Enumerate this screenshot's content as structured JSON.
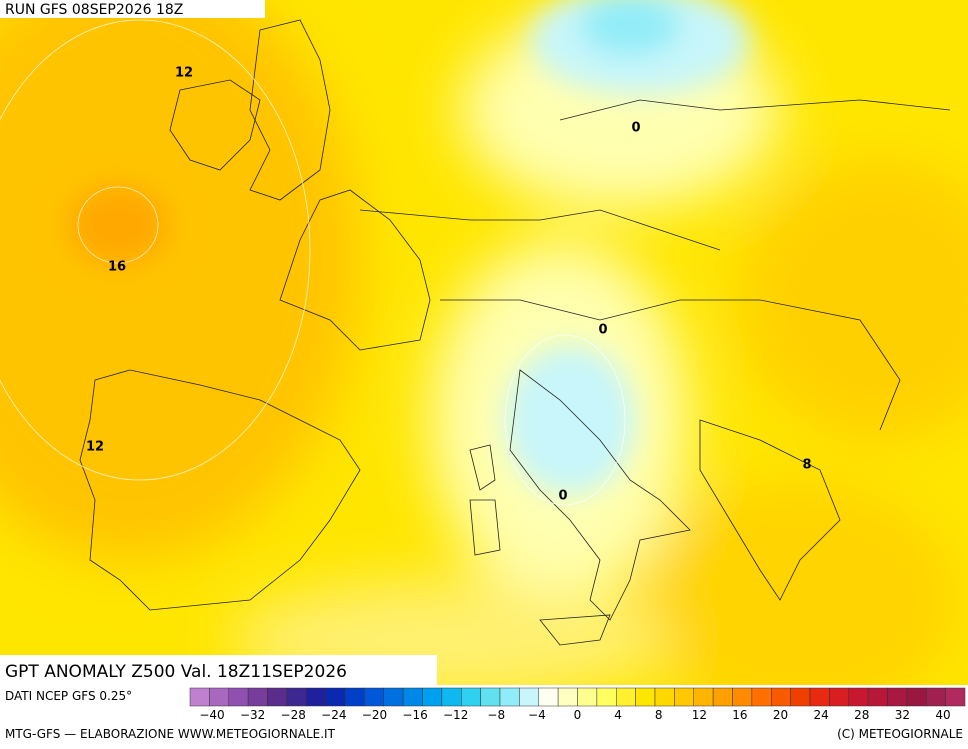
{
  "header": {
    "run": "RUN GFS 08SEP2026 18Z"
  },
  "title": "GPT ANOMALY Z500 Val. 18Z11SEP2026",
  "source": "DATI NCEP GFS 0.25°",
  "footer": {
    "left": "MTG-GFS — ELABORAZIONE WWW.METEOGIORNALE.IT",
    "right": "(C) METEOGIORNALE"
  },
  "contour_labels": [
    "12",
    "16",
    "12",
    "0",
    "0",
    "0",
    "8"
  ],
  "colorbar": {
    "labels": [
      "−40",
      "−32",
      "−28",
      "−24",
      "−20",
      "−16",
      "−12",
      "−8",
      "−4",
      "0",
      "4",
      "8",
      "12",
      "16",
      "20",
      "24",
      "28",
      "32",
      "40"
    ],
    "colors": [
      "#c080d0",
      "#a868c0",
      "#9050b0",
      "#783c9c",
      "#5a2c8c",
      "#3c2890",
      "#1e209c",
      "#0a28b0",
      "#0040c8",
      "#0058d8",
      "#0070e0",
      "#0088e8",
      "#00a0f0",
      "#10b8f0",
      "#30d0f0",
      "#60e0f0",
      "#90ecf8",
      "#c8f6fa",
      "#fffff0",
      "#ffffc0",
      "#ffff90",
      "#ffff60",
      "#fff030",
      "#ffe600",
      "#ffd800",
      "#ffc800",
      "#ffb400",
      "#ffa000",
      "#ff8c00",
      "#ff7000",
      "#f85a00",
      "#f04000",
      "#e82a10",
      "#d81e20",
      "#c81830",
      "#b81838",
      "#a81840",
      "#981840",
      "#a02050",
      "#b02a60"
    ]
  }
}
